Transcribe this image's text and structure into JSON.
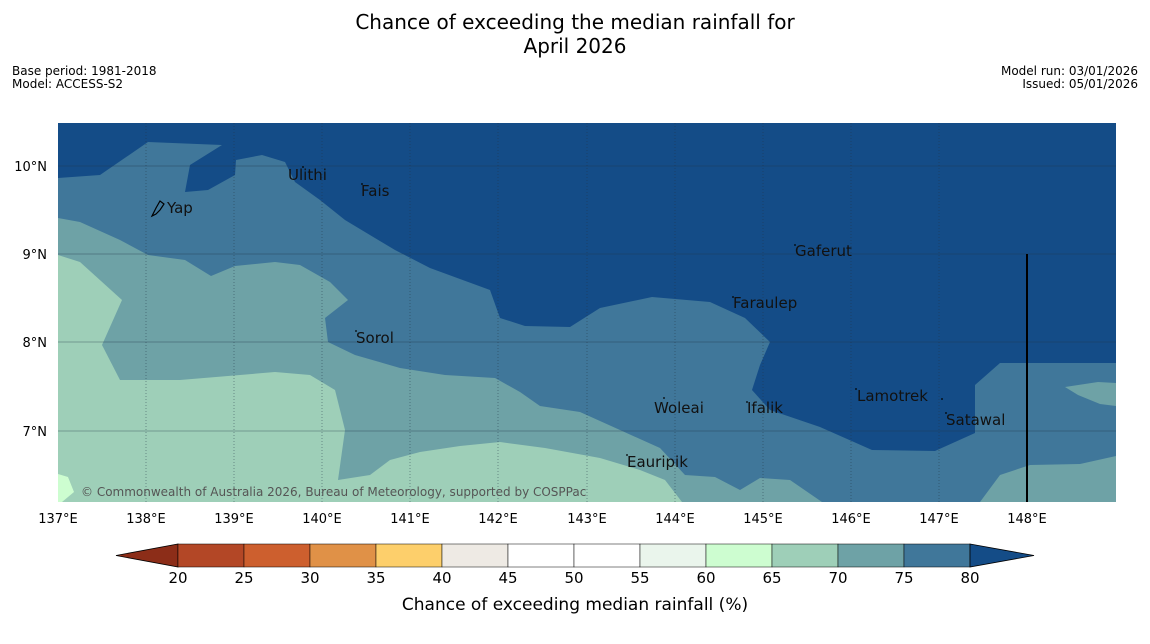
{
  "title": {
    "line1": "Chance of exceeding the median rainfall for",
    "line2": "April 2026"
  },
  "meta_left": {
    "base_period": "Base period: 1981-2018",
    "model": "Model: ACCESS-S2"
  },
  "meta_right": {
    "model_run": "Model run: 03/01/2026",
    "issued": "Issued: 05/01/2026"
  },
  "map": {
    "lon_labels": [
      "137°E",
      "138°E",
      "139°E",
      "140°E",
      "141°E",
      "142°E",
      "143°E",
      "144°E",
      "145°E",
      "146°E",
      "147°E",
      "148°E"
    ],
    "lat_labels": [
      "10°N",
      "9°N",
      "8°N",
      "7°N"
    ],
    "places": [
      "Yap",
      "Ulithi",
      "Fais",
      "Gaferut",
      "Faraulep",
      "Sorol",
      "Woleai",
      "Ifalik",
      "Lamotrek",
      "Satawal",
      "Eauripik"
    ],
    "copyright": "© Commonwealth of Australia 2026, Bureau of Meteorology, supported by COSPPac",
    "colors": {
      "c80plus": "#144c87",
      "c75_80": "#40779a",
      "c70_75": "#6ea2a6",
      "c65_70": "#9ecfb8",
      "c60_65": "#cdfdd0"
    }
  },
  "colorbar": {
    "ticks": [
      "20",
      "25",
      "30",
      "35",
      "40",
      "45",
      "50",
      "55",
      "60",
      "65",
      "70",
      "75",
      "80"
    ],
    "colors": [
      "#8c2d18",
      "#b34726",
      "#cd5f2e",
      "#e09147",
      "#fdcf6b",
      "#eeeae4",
      "#ffffff",
      "#ffffff",
      "#eaf5ec",
      "#cdfdd0",
      "#9ecfb8",
      "#6ea2a6",
      "#40779a",
      "#144c87"
    ],
    "label": "Chance of exceeding median rainfall (%)"
  }
}
